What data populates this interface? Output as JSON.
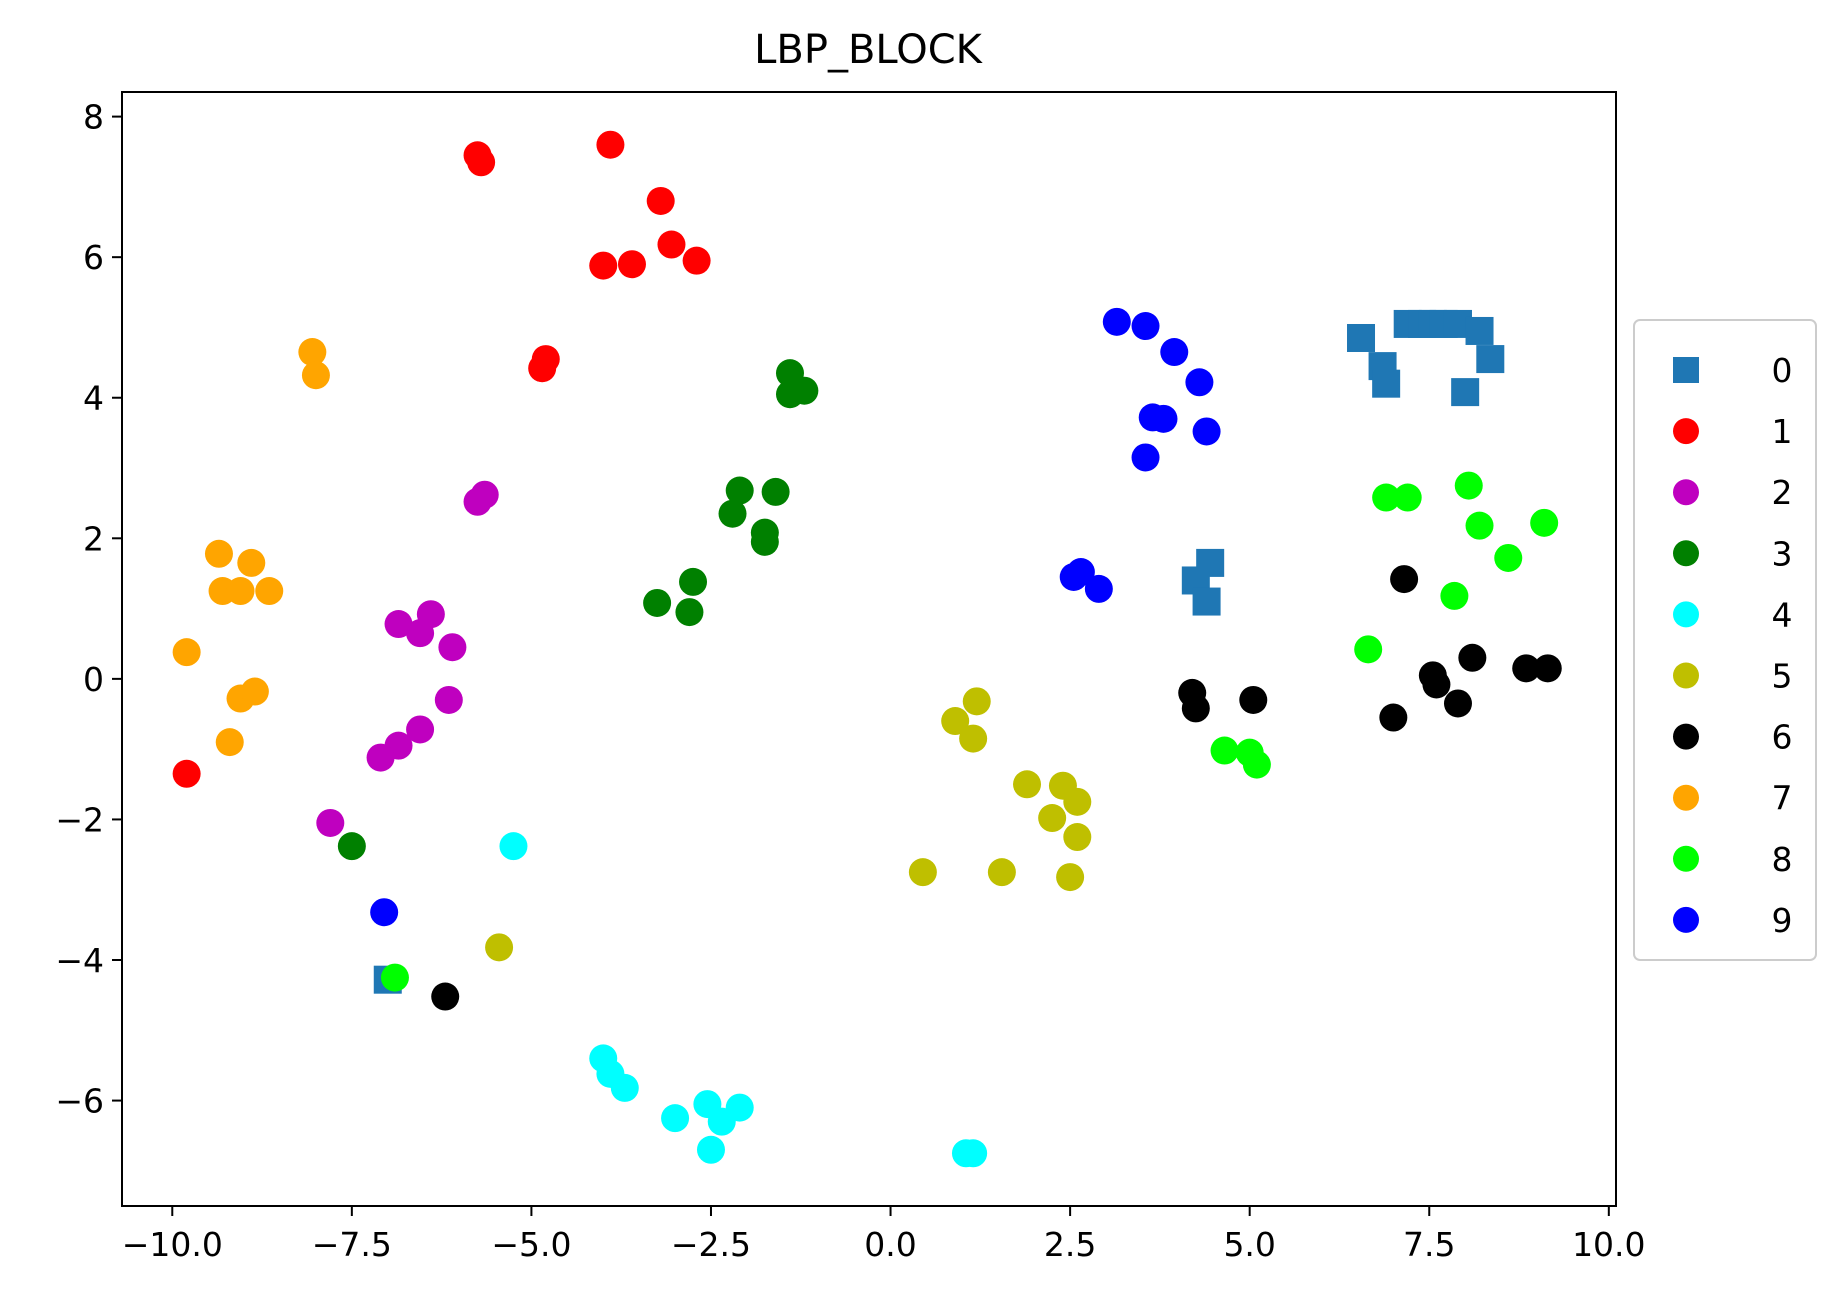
{
  "chart_data": {
    "type": "scatter",
    "title": "LBP_BLOCK",
    "xlabel": "",
    "ylabel": "",
    "xlim": [
      -10.7,
      10.1
    ],
    "ylim": [
      -7.5,
      8.35
    ],
    "xticks": [
      -10.0,
      -7.5,
      -5.0,
      -2.5,
      0.0,
      2.5,
      5.0,
      7.5,
      10.0
    ],
    "xtick_labels": [
      "−10.0",
      "−7.5",
      "−5.0",
      "−2.5",
      "0.0",
      "2.5",
      "5.0",
      "7.5",
      "10.0"
    ],
    "yticks": [
      8,
      6,
      4,
      2,
      0,
      -2,
      -4,
      -6
    ],
    "ytick_labels": [
      "8",
      "6",
      "4",
      "2",
      "0",
      "−2",
      "−4",
      "−6"
    ],
    "grid": false,
    "legend_position": "center-right-outside",
    "series": [
      {
        "name": "0",
        "color": "#1f77b4",
        "marker": "square",
        "points": [
          [
            6.55,
            4.85
          ],
          [
            6.85,
            4.45
          ],
          [
            6.9,
            4.2
          ],
          [
            7.2,
            5.05
          ],
          [
            7.4,
            5.05
          ],
          [
            7.55,
            5.05
          ],
          [
            7.7,
            5.05
          ],
          [
            7.9,
            5.05
          ],
          [
            8.2,
            4.95
          ],
          [
            8.35,
            4.55
          ],
          [
            8.0,
            4.08
          ],
          [
            4.25,
            1.4
          ],
          [
            4.45,
            1.65
          ],
          [
            4.4,
            1.1
          ],
          [
            -7.0,
            -4.28
          ]
        ]
      },
      {
        "name": "1",
        "color": "#ff0000",
        "marker": "circle",
        "points": [
          [
            -5.75,
            7.45
          ],
          [
            -5.7,
            7.35
          ],
          [
            -3.9,
            7.6
          ],
          [
            -3.2,
            6.8
          ],
          [
            -3.05,
            6.18
          ],
          [
            -2.7,
            5.95
          ],
          [
            -3.6,
            5.9
          ],
          [
            -4.0,
            5.88
          ],
          [
            -4.8,
            4.55
          ],
          [
            -4.85,
            4.42
          ],
          [
            -9.8,
            -1.35
          ]
        ]
      },
      {
        "name": "2",
        "color": "#bf00bf",
        "marker": "circle",
        "points": [
          [
            -5.65,
            2.62
          ],
          [
            -5.75,
            2.52
          ],
          [
            -6.85,
            0.78
          ],
          [
            -6.4,
            0.92
          ],
          [
            -6.55,
            0.65
          ],
          [
            -6.1,
            0.45
          ],
          [
            -6.15,
            -0.3
          ],
          [
            -6.55,
            -0.72
          ],
          [
            -6.85,
            -0.95
          ],
          [
            -7.1,
            -1.12
          ],
          [
            -7.8,
            -2.05
          ]
        ]
      },
      {
        "name": "3",
        "color": "#008000",
        "marker": "circle",
        "points": [
          [
            -1.4,
            4.35
          ],
          [
            -1.2,
            4.1
          ],
          [
            -1.4,
            4.05
          ],
          [
            -2.1,
            2.68
          ],
          [
            -1.6,
            2.66
          ],
          [
            -2.2,
            2.35
          ],
          [
            -1.75,
            2.08
          ],
          [
            -1.75,
            1.95
          ],
          [
            -2.75,
            1.38
          ],
          [
            -3.25,
            1.08
          ],
          [
            -2.8,
            0.95
          ],
          [
            -7.5,
            -2.38
          ]
        ]
      },
      {
        "name": "4",
        "color": "#00ffff",
        "marker": "circle",
        "points": [
          [
            -5.25,
            -2.38
          ],
          [
            -4.0,
            -5.4
          ],
          [
            -3.9,
            -5.62
          ],
          [
            -3.7,
            -5.82
          ],
          [
            -3.0,
            -6.25
          ],
          [
            -2.55,
            -6.05
          ],
          [
            -2.35,
            -6.3
          ],
          [
            -2.1,
            -6.1
          ],
          [
            -2.5,
            -6.7
          ],
          [
            1.05,
            -6.75
          ],
          [
            1.15,
            -6.75
          ]
        ]
      },
      {
        "name": "5",
        "color": "#bfbf00",
        "marker": "circle",
        "points": [
          [
            1.2,
            -0.32
          ],
          [
            0.9,
            -0.6
          ],
          [
            1.15,
            -0.85
          ],
          [
            1.9,
            -1.5
          ],
          [
            2.4,
            -1.52
          ],
          [
            2.6,
            -1.75
          ],
          [
            2.25,
            -1.98
          ],
          [
            2.6,
            -2.25
          ],
          [
            0.45,
            -2.75
          ],
          [
            1.55,
            -2.75
          ],
          [
            2.5,
            -2.82
          ],
          [
            -5.45,
            -3.82
          ]
        ]
      },
      {
        "name": "6",
        "color": "#000000",
        "marker": "circle",
        "points": [
          [
            7.15,
            1.42
          ],
          [
            8.1,
            0.3
          ],
          [
            8.85,
            0.15
          ],
          [
            9.15,
            0.15
          ],
          [
            7.55,
            0.05
          ],
          [
            7.6,
            -0.08
          ],
          [
            7.0,
            -0.55
          ],
          [
            7.9,
            -0.35
          ],
          [
            4.2,
            -0.2
          ],
          [
            4.25,
            -0.42
          ],
          [
            5.05,
            -0.3
          ],
          [
            -6.2,
            -4.52
          ]
        ]
      },
      {
        "name": "7",
        "color": "#ffa500",
        "marker": "circle",
        "points": [
          [
            -8.05,
            4.65
          ],
          [
            -8.0,
            4.32
          ],
          [
            -9.35,
            1.78
          ],
          [
            -8.9,
            1.65
          ],
          [
            -9.3,
            1.25
          ],
          [
            -9.05,
            1.25
          ],
          [
            -8.65,
            1.25
          ],
          [
            -9.8,
            0.38
          ],
          [
            -9.05,
            -0.28
          ],
          [
            -8.85,
            -0.18
          ],
          [
            -9.2,
            -0.9
          ]
        ]
      },
      {
        "name": "8",
        "color": "#00ff00",
        "marker": "circle",
        "points": [
          [
            6.9,
            2.58
          ],
          [
            7.2,
            2.58
          ],
          [
            8.05,
            2.75
          ],
          [
            8.2,
            2.18
          ],
          [
            9.1,
            2.22
          ],
          [
            8.6,
            1.72
          ],
          [
            7.85,
            1.18
          ],
          [
            6.65,
            0.42
          ],
          [
            4.65,
            -1.02
          ],
          [
            5.0,
            -1.05
          ],
          [
            5.1,
            -1.22
          ],
          [
            -6.9,
            -4.25
          ]
        ]
      },
      {
        "name": "9",
        "color": "#0000ff",
        "marker": "circle",
        "points": [
          [
            3.15,
            5.08
          ],
          [
            3.55,
            5.02
          ],
          [
            3.95,
            4.65
          ],
          [
            4.3,
            4.22
          ],
          [
            3.65,
            3.72
          ],
          [
            3.8,
            3.7
          ],
          [
            4.4,
            3.52
          ],
          [
            3.55,
            3.15
          ],
          [
            2.65,
            1.52
          ],
          [
            2.55,
            1.45
          ],
          [
            2.9,
            1.28
          ],
          [
            -7.05,
            -3.32
          ]
        ]
      }
    ]
  }
}
